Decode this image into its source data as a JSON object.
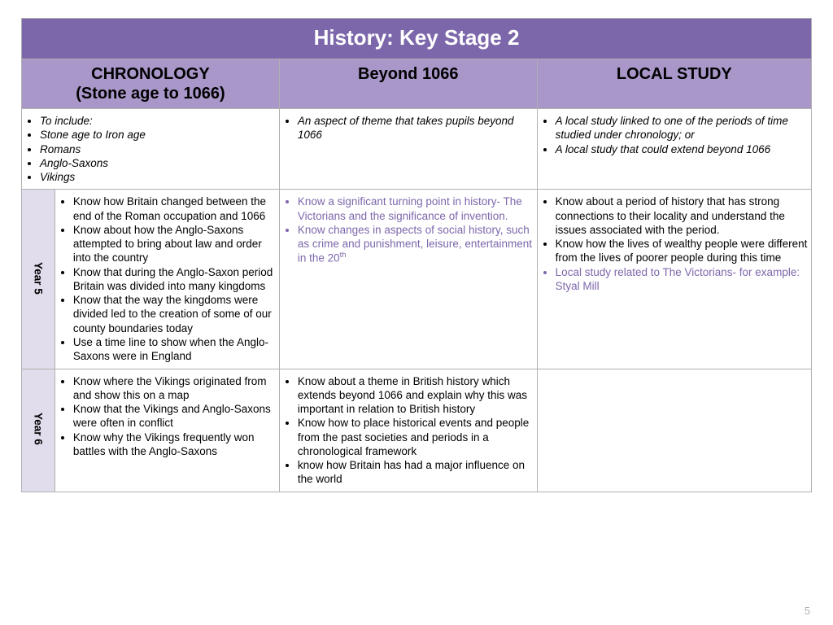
{
  "title": "History: Key Stage 2",
  "colWidths": {
    "yearCol": 40,
    "col1": 270,
    "col2": 310,
    "col3": 330
  },
  "colors": {
    "titleBg": "#7d67ab",
    "headerBg": "#a897c8",
    "yearBg": "#e2ddec",
    "purpleText": "#7d67ab",
    "border": "#b0b0b0",
    "pageNum": "#b0b0b0"
  },
  "fonts": {
    "titleSize": 26,
    "headerSize": 20,
    "bodySize": 13.5,
    "yearSize": 15
  },
  "headers": {
    "col1_line1": "CHRONOLOGY",
    "col1_line2": "(Stone age to 1066)",
    "col2": "Beyond 1066",
    "col3": "LOCAL STUDY"
  },
  "descriptions": {
    "col1": [
      "To include:",
      "Stone age to Iron age",
      "Romans",
      "Anglo-Saxons",
      "Vikings"
    ],
    "col2": [
      "An aspect of theme that takes pupils beyond 1066"
    ],
    "col3": [
      "A local study linked to one of the periods of time studied under chronology; or",
      "A local study that could extend beyond 1066"
    ]
  },
  "rows": [
    {
      "year": "Year 5",
      "col1": {
        "black": [
          "Know how Britain changed between the end of the Roman occupation and 1066",
          "Know about how the Anglo-Saxons attempted to bring about law and order into the country",
          "Know that during the Anglo-Saxon period Britain was divided into many kingdoms",
          "Know that the way the kingdoms were divided led to the creation of some of our county boundaries today",
          "Use a time line to show when the Anglo-Saxons were in England"
        ],
        "purple": []
      },
      "col2": {
        "black": [],
        "purple": [
          "Know a significant turning point in history- The Victorians and the significance of invention.",
          "Know changes in aspects of social history, such as crime and punishment, leisure, entertainment in the 20"
        ],
        "purpleLastSup": "th"
      },
      "col3": {
        "black": [
          "Know about a period of history that has strong connections to their locality and understand the issues associated with the period.",
          "Know how the lives of wealthy people were different from the lives of poorer people during this time"
        ],
        "purple": [
          "Local study related to The Victorians- for example: Styal Mill"
        ]
      }
    },
    {
      "year": "Year 6",
      "col1": {
        "black": [
          "Know where the Vikings originated from and show this on a map",
          "Know that the Vikings and Anglo-Saxons were often in conflict",
          "Know why the Vikings frequently won battles with the Anglo-Saxons"
        ],
        "purple": []
      },
      "col2": {
        "black": [
          "Know about a theme in British history which extends beyond 1066 and explain why this was important in relation to British history",
          "Know how to place historical events and people from the past societies and periods in a chronological framework",
          "know how Britain has had a major influence on the world"
        ],
        "purple": []
      },
      "col3": {
        "black": [],
        "purple": []
      }
    }
  ],
  "pageNumber": "5"
}
